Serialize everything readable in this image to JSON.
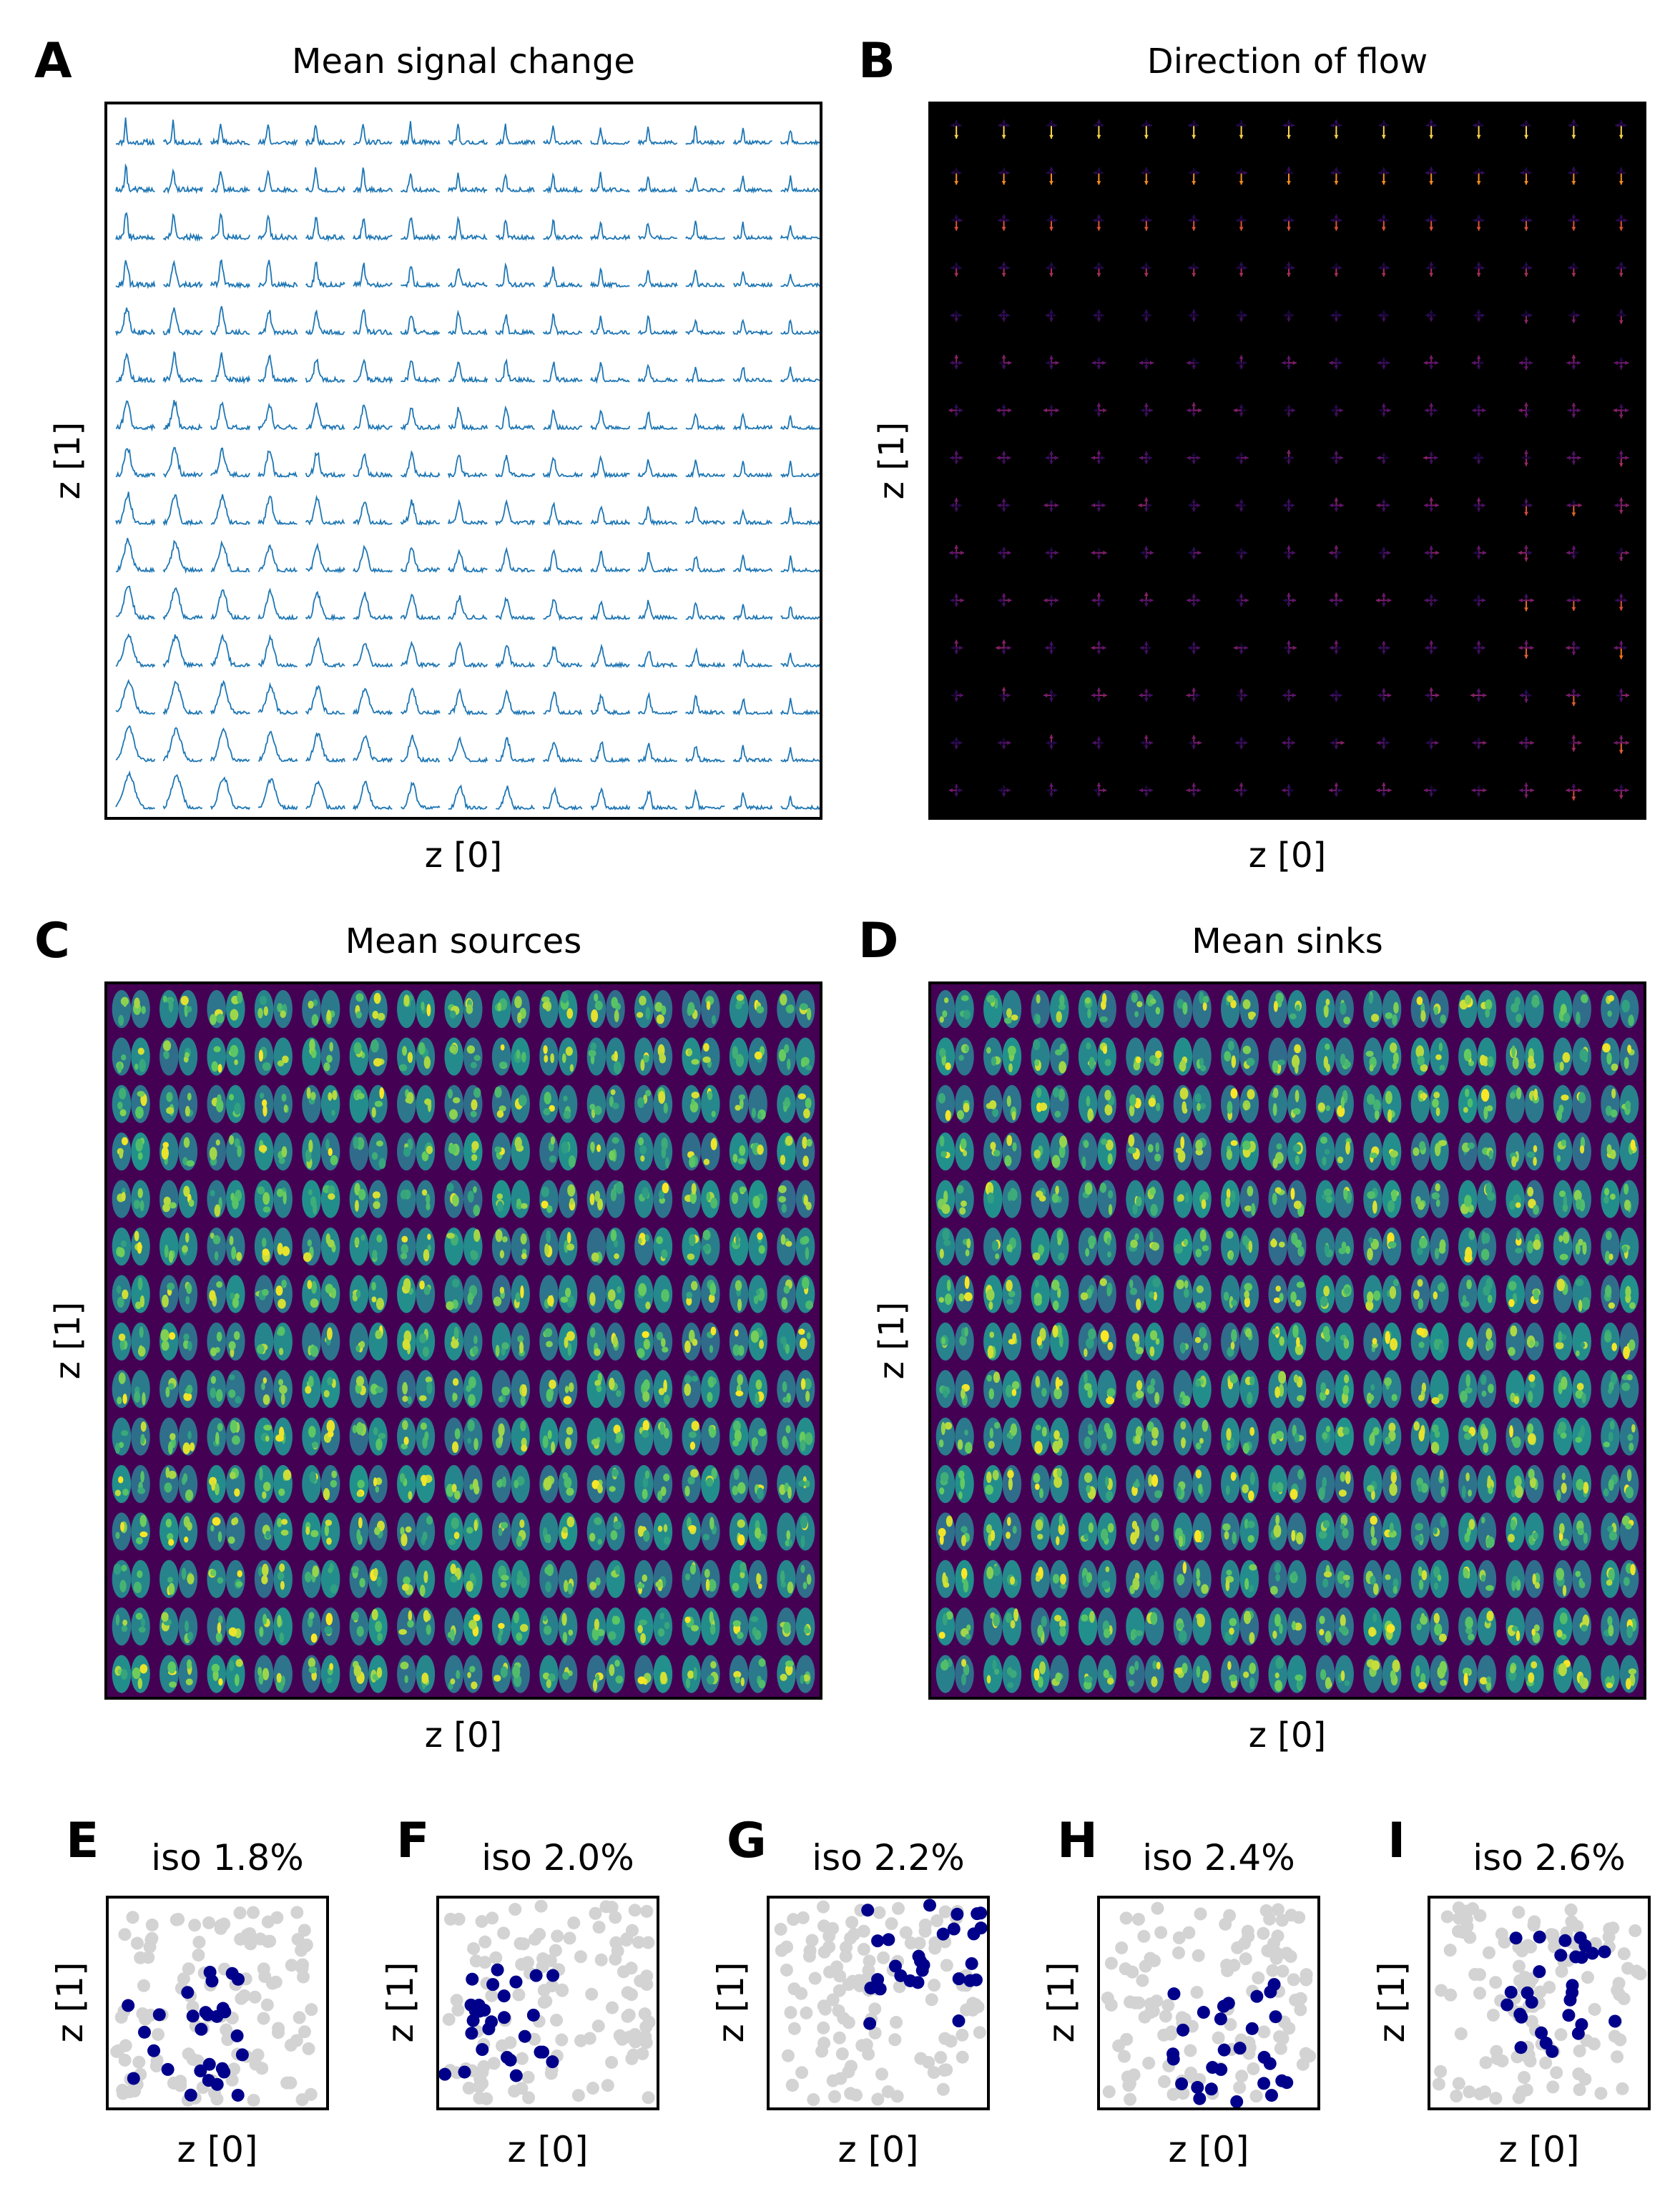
{
  "panels": {
    "A": {
      "letter": "A",
      "title": "Mean signal change",
      "xlabel": "z [0]",
      "ylabel": "z [1]"
    },
    "B": {
      "letter": "B",
      "title": "Direction of flow",
      "xlabel": "z [0]",
      "ylabel": "z [1]"
    },
    "C": {
      "letter": "C",
      "title": "Mean sources",
      "xlabel": "z [0]",
      "ylabel": "z [1]"
    },
    "D": {
      "letter": "D",
      "title": "Mean sinks",
      "xlabel": "z [0]",
      "ylabel": "z [1]"
    }
  },
  "small_panels": [
    {
      "letter": "E",
      "title": "iso 1.8%",
      "xlabel": "z [0]",
      "ylabel": "z [1]"
    },
    {
      "letter": "F",
      "title": "iso 2.0%",
      "xlabel": "z [0]",
      "ylabel": "z [1]"
    },
    {
      "letter": "G",
      "title": "iso 2.2%",
      "xlabel": "z [0]",
      "ylabel": "z [1]"
    },
    {
      "letter": "H",
      "title": "iso 2.4%",
      "xlabel": "z [0]",
      "ylabel": "z [1]"
    },
    {
      "letter": "I",
      "title": "iso 2.6%",
      "xlabel": "z [0]",
      "ylabel": "z [1]"
    }
  ],
  "chart_data": [
    {
      "type": "line",
      "title": "Mean signal change",
      "xlabel": "z [0]",
      "ylabel": "z [1]",
      "grid_rows": 15,
      "grid_cols": 15,
      "color": "#1f77b4"
    },
    {
      "type": "quiver",
      "title": "Direction of flow",
      "xlabel": "z [0]",
      "ylabel": "z [1]",
      "grid_rows": 15,
      "grid_cols": 15,
      "background": "#000000",
      "colormap": "inferno"
    },
    {
      "type": "heatmap",
      "title": "Mean sources",
      "xlabel": "z [0]",
      "ylabel": "z [1]",
      "grid_rows": 15,
      "grid_cols": 15,
      "colormap": "viridis"
    },
    {
      "type": "heatmap",
      "title": "Mean sinks",
      "xlabel": "z [0]",
      "ylabel": "z [1]",
      "grid_rows": 15,
      "grid_cols": 15,
      "colormap": "viridis"
    },
    {
      "type": "scatter",
      "title": "iso 1.8%",
      "xlabel": "z [0]",
      "ylabel": "z [1]",
      "highlight_color": "#00008b",
      "base_color": "#d3d3d3"
    },
    {
      "type": "scatter",
      "title": "iso 2.0%",
      "xlabel": "z [0]",
      "ylabel": "z [1]",
      "highlight_color": "#00008b",
      "base_color": "#d3d3d3"
    },
    {
      "type": "scatter",
      "title": "iso 2.2%",
      "xlabel": "z [0]",
      "ylabel": "z [1]",
      "highlight_color": "#00008b",
      "base_color": "#d3d3d3"
    },
    {
      "type": "scatter",
      "title": "iso 2.4%",
      "xlabel": "z [0]",
      "ylabel": "z [1]",
      "highlight_color": "#00008b",
      "base_color": "#d3d3d3"
    },
    {
      "type": "scatter",
      "title": "iso 2.6%",
      "xlabel": "z [0]",
      "ylabel": "z [1]",
      "highlight_color": "#00008b",
      "base_color": "#d3d3d3"
    }
  ]
}
